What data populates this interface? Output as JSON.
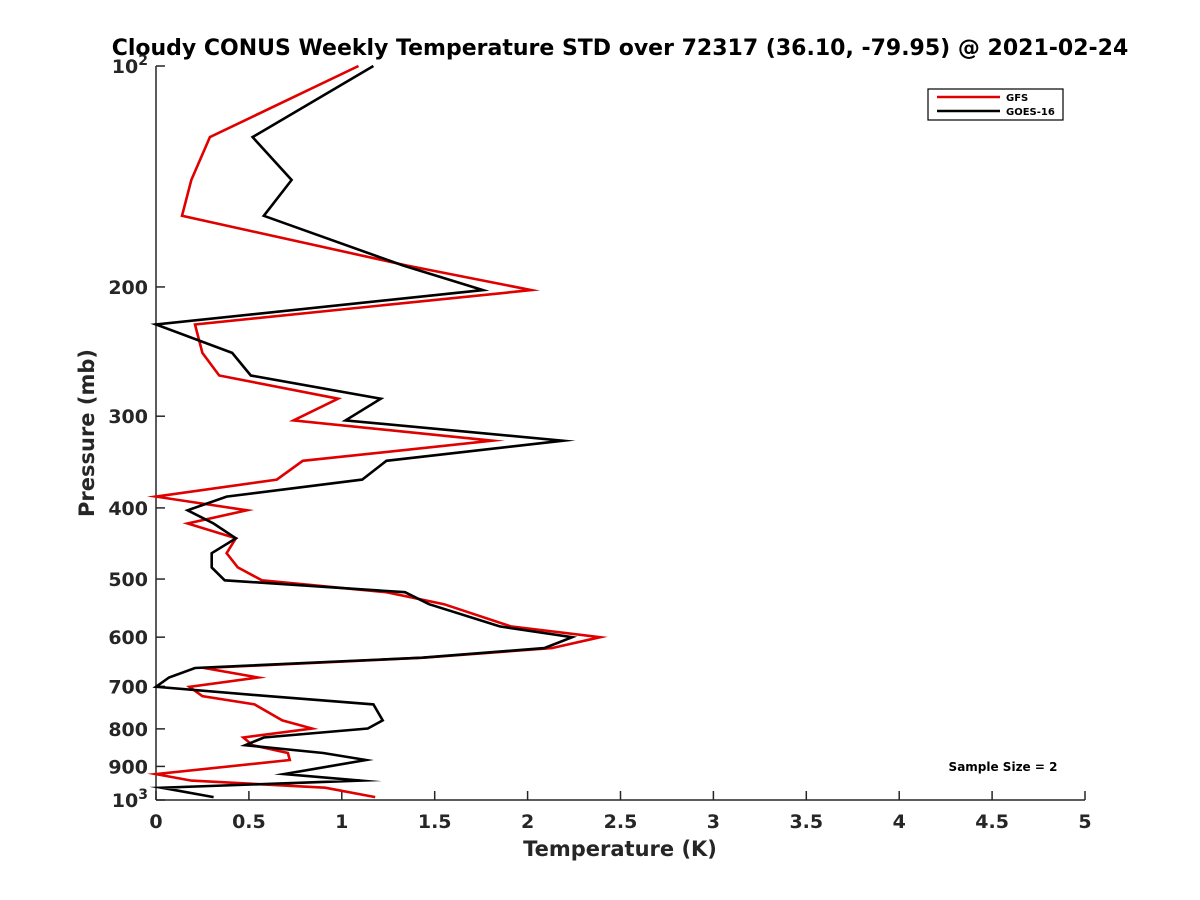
{
  "chart_data": {
    "type": "line",
    "title": "Cloudy CONUS Weekly Temperature STD over 72317 (36.10, -79.95) @ 2021-02-24",
    "xlabel": "Temperature (K)",
    "ylabel": "Pressure (mb)",
    "xlim": [
      0,
      5
    ],
    "ylim": [
      100,
      1000
    ],
    "y_scale": "log",
    "y_reversed": true,
    "x_ticks": [
      "0",
      "0.5",
      "1",
      "1.5",
      "2",
      "2.5",
      "3",
      "3.5",
      "4",
      "4.5",
      "5"
    ],
    "y_ticks": [
      {
        "value": 100,
        "base": "10",
        "exp": "2"
      },
      {
        "value": 200,
        "label": "200"
      },
      {
        "value": 300,
        "label": "300"
      },
      {
        "value": 400,
        "label": "400"
      },
      {
        "value": 500,
        "label": "500"
      },
      {
        "value": 600,
        "label": "600"
      },
      {
        "value": 700,
        "label": "700"
      },
      {
        "value": 800,
        "label": "800"
      },
      {
        "value": 900,
        "label": "900"
      },
      {
        "value": 1000,
        "base": "10",
        "exp": "3"
      }
    ],
    "grid": false,
    "legend_position": "top-right",
    "annotation": "Sample Size = 2",
    "series": [
      {
        "name": "GFS",
        "color": "#e00000",
        "points": [
          [
            1.09,
            100
          ],
          [
            0.29,
            125
          ],
          [
            0.19,
            143
          ],
          [
            0.14,
            160
          ],
          [
            1.35,
            187
          ],
          [
            2.02,
            202
          ],
          [
            0.21,
            225
          ],
          [
            0.25,
            246
          ],
          [
            0.34,
            264
          ],
          [
            0.98,
            284
          ],
          [
            0.74,
            304
          ],
          [
            1.81,
            324
          ],
          [
            0.79,
            345
          ],
          [
            0.65,
            366
          ],
          [
            0.0,
            386
          ],
          [
            0.49,
            403
          ],
          [
            0.17,
            420
          ],
          [
            0.43,
            440
          ],
          [
            0.38,
            461
          ],
          [
            0.44,
            482
          ],
          [
            0.57,
            502
          ],
          [
            1.24,
            521
          ],
          [
            1.55,
            541
          ],
          [
            1.91,
            580
          ],
          [
            2.39,
            600
          ],
          [
            2.13,
            621
          ],
          [
            1.44,
            640
          ],
          [
            0.26,
            661
          ],
          [
            0.55,
            681
          ],
          [
            0.18,
            701
          ],
          [
            0.25,
            722
          ],
          [
            0.53,
            741
          ],
          [
            0.68,
            779
          ],
          [
            0.84,
            799
          ],
          [
            0.47,
            822
          ],
          [
            0.52,
            842
          ],
          [
            0.71,
            863
          ],
          [
            0.72,
            882
          ],
          [
            0.0,
            922
          ],
          [
            0.19,
            941
          ],
          [
            0.91,
            962
          ],
          [
            1.18,
            991
          ]
        ]
      },
      {
        "name": "GOES-16",
        "color": "#000000",
        "points": [
          [
            1.17,
            100
          ],
          [
            0.52,
            125
          ],
          [
            0.73,
            143
          ],
          [
            0.58,
            160
          ],
          [
            1.33,
            187
          ],
          [
            1.76,
            202
          ],
          [
            0.0,
            225
          ],
          [
            0.41,
            246
          ],
          [
            0.51,
            264
          ],
          [
            1.21,
            284
          ],
          [
            1.02,
            304
          ],
          [
            2.19,
            324
          ],
          [
            1.24,
            345
          ],
          [
            1.11,
            366
          ],
          [
            0.38,
            386
          ],
          [
            0.17,
            403
          ],
          [
            0.31,
            420
          ],
          [
            0.43,
            440
          ],
          [
            0.3,
            461
          ],
          [
            0.3,
            482
          ],
          [
            0.37,
            502
          ],
          [
            1.34,
            521
          ],
          [
            1.47,
            541
          ],
          [
            1.85,
            580
          ],
          [
            2.24,
            600
          ],
          [
            2.09,
            621
          ],
          [
            1.43,
            640
          ],
          [
            0.21,
            661
          ],
          [
            0.07,
            681
          ],
          [
            0.0,
            701
          ],
          [
            0.61,
            722
          ],
          [
            1.17,
            741
          ],
          [
            1.22,
            779
          ],
          [
            1.14,
            799
          ],
          [
            0.58,
            822
          ],
          [
            0.48,
            842
          ],
          [
            0.9,
            863
          ],
          [
            1.13,
            882
          ],
          [
            0.69,
            922
          ],
          [
            1.1,
            941
          ],
          [
            0.03,
            962
          ],
          [
            0.31,
            991
          ]
        ]
      }
    ]
  }
}
